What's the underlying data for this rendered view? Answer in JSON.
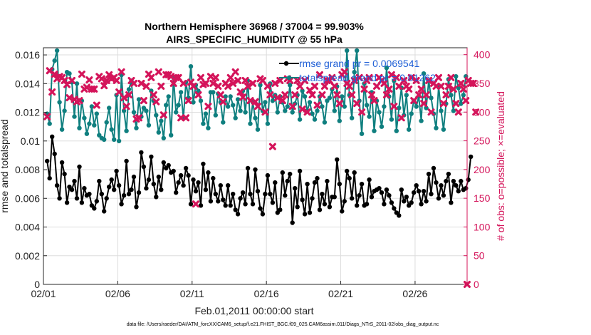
{
  "chart_data": {
    "type": "line",
    "title_line1": "Northern Hemisphere 36968 / 37004 = 99.903%",
    "title_line2": "AIRS_SPECIFIC_HUMIDITY @ 55 hPa",
    "xlabel": "Feb.01,2011 00:00:00 start",
    "ylabel_left": "rmse and totalspread",
    "ylabel_right": "# of obs: o=possible; ×=evaluated",
    "x_tick_labels": [
      "02/01",
      "02/06",
      "02/11",
      "02/16",
      "02/21",
      "02/26"
    ],
    "y_left_ticks": [
      "0",
      "0.002",
      "0.004",
      "0.006",
      "0.008",
      "0.01",
      "0.012",
      "0.014",
      "0.016"
    ],
    "y_right_ticks": [
      "0",
      "50",
      "100",
      "150",
      "200",
      "250",
      "300",
      "350",
      "400"
    ],
    "x_range_days": [
      0,
      28.5
    ],
    "y_left_range": [
      0,
      0.0165
    ],
    "y_right_range": [
      0,
      412
    ],
    "grid": true,
    "legend_position": "top-right",
    "footer": "data file: /Users/raeder/DAI/ATM_forcXX/CAM6_setup/f.e21.FHIST_BGC.f09_025.CAM6assim.011/Diags_NTrS_2011-02/obs_diag_output.nc",
    "colors": {
      "rmse": "#000000",
      "spread": "#0f7f7f",
      "obs": "#d4145a",
      "legend_text": "#1f5fd6"
    },
    "series": [
      {
        "name": "rmse grand pr = 0.0069541",
        "values": [
          0.0086,
          0.0074,
          0.0103,
          0.0091,
          0.0069,
          0.006,
          0.0085,
          0.0077,
          0.0057,
          0.0068,
          0.0066,
          0.0072,
          0.006,
          0.0082,
          0.0057,
          0.0067,
          0.0062,
          0.0063,
          0.0055,
          0.0053,
          0.0058,
          0.0072,
          0.0063,
          0.0051,
          0.006,
          0.0068,
          0.0073,
          0.0066,
          0.0079,
          0.0069,
          0.0056,
          0.0062,
          0.0086,
          0.0063,
          0.0066,
          0.0075,
          0.0054,
          0.0064,
          0.0092,
          0.0082,
          0.0067,
          0.0073,
          0.0089,
          0.007,
          0.0061,
          0.0075,
          0.0066,
          0.0085,
          0.0081,
          0.0083,
          0.0078,
          0.0079,
          0.0064,
          0.0071,
          0.0076,
          0.0069,
          0.0081,
          0.0076,
          0.0056,
          0.0073,
          0.0065,
          0.0071,
          0.0055,
          0.0084,
          0.0066,
          0.0078,
          0.0058,
          0.0074,
          0.0063,
          0.0058,
          0.0069,
          0.0059,
          0.0055,
          0.0069,
          0.0055,
          0.0063,
          0.0052,
          0.0049,
          0.006,
          0.0064,
          0.0056,
          0.0081,
          0.0063,
          0.0056,
          0.008,
          0.0065,
          0.0053,
          0.0049,
          0.0063,
          0.0076,
          0.0063,
          0.0057,
          0.0071,
          0.005,
          0.0052,
          0.0078,
          0.0062,
          0.0072,
          0.0077,
          0.0043,
          0.0067,
          0.0054,
          0.0079,
          0.0059,
          0.0049,
          0.007,
          0.005,
          0.006,
          0.0071,
          0.0074,
          0.0052,
          0.0063,
          0.0056,
          0.0072,
          0.0054,
          0.0061,
          0.0061,
          0.0087,
          0.007,
          0.0051,
          0.0058,
          0.0079,
          0.0074,
          0.006,
          0.0078,
          0.0055,
          0.0062,
          0.007,
          0.0055,
          0.0056,
          0.0073,
          0.0061,
          0.0065,
          0.0066,
          0.0067,
          0.0064,
          0.0056,
          0.0066,
          0.0062,
          0.0057,
          0.0053,
          0.005,
          0.0048,
          0.0066,
          0.0058,
          0.0061,
          0.0055,
          0.0057,
          0.0064,
          0.0069,
          0.0065,
          0.0056,
          0.0065,
          0.0058,
          0.0077,
          0.0063,
          0.0081,
          0.0071,
          0.006,
          0.0069,
          0.0062,
          0.0072,
          0.0077,
          0.0057,
          0.0072,
          0.0069,
          0.0065,
          0.0072,
          0.0066,
          0.0067,
          0.0073,
          0.0089
        ]
      },
      {
        "name": "totalspread grand pr = 0.01262",
        "values": [
          0.0119,
          0.0112,
          0.015,
          0.0156,
          0.0163,
          0.0127,
          0.0108,
          0.0121,
          0.0148,
          0.0147,
          0.0141,
          0.0117,
          0.014,
          0.0109,
          0.0128,
          0.0116,
          0.0105,
          0.0112,
          0.0124,
          0.0111,
          0.0119,
          0.0104,
          0.0102,
          0.0101,
          0.0113,
          0.0123,
          0.0108,
          0.0101,
          0.0132,
          0.01,
          0.0146,
          0.0121,
          0.0107,
          0.0136,
          0.0142,
          0.012,
          0.0109,
          0.0129,
          0.0117,
          0.0123,
          0.0121,
          0.0111,
          0.0135,
          0.0128,
          0.0118,
          0.0106,
          0.0114,
          0.0102,
          0.0125,
          0.0131,
          0.0104,
          0.0144,
          0.012,
          0.0125,
          0.0134,
          0.0116,
          0.0141,
          0.013,
          0.0152,
          0.0127,
          0.0139,
          0.0135,
          0.0128,
          0.0112,
          0.0119,
          0.0109,
          0.0134,
          0.0134,
          0.0118,
          0.0133,
          0.0127,
          0.0113,
          0.0131,
          0.0124,
          0.0131,
          0.0125,
          0.0116,
          0.0129,
          0.0121,
          0.0135,
          0.012,
          0.0142,
          0.0112,
          0.0127,
          0.0116,
          0.0108,
          0.0139,
          0.0121,
          0.0127,
          0.0112,
          0.014,
          0.0128,
          0.0132,
          0.012,
          0.0131,
          0.0127,
          0.0121,
          0.0124,
          0.0139,
          0.012,
          0.0126,
          0.0132,
          0.0115,
          0.0135,
          0.0131,
          0.0121,
          0.0127,
          0.0119,
          0.0115,
          0.0121,
          0.0131,
          0.0124,
          0.0113,
          0.0128,
          0.013,
          0.0136,
          0.0121,
          0.0138,
          0.0114,
          0.0131,
          0.0124,
          0.0163,
          0.0132,
          0.0116,
          0.0148,
          0.0163,
          0.0128,
          0.0105,
          0.014,
          0.0125,
          0.0117,
          0.0134,
          0.0107,
          0.0128,
          0.012,
          0.011,
          0.0124,
          0.0151,
          0.0131,
          0.0115,
          0.0142,
          0.0107,
          0.0123,
          0.0137,
          0.0118,
          0.0132,
          0.0108,
          0.0119,
          0.0128,
          0.0124,
          0.0131,
          0.0114,
          0.0147,
          0.0123,
          0.0142,
          0.013,
          0.0119,
          0.0109,
          0.0138,
          0.0121,
          0.0108,
          0.0126,
          0.0143,
          0.0132,
          0.0121,
          0.0145,
          0.0137,
          0.0126,
          0.0132,
          0.0145
        ]
      },
      {
        "name": "evaluated",
        "values": [
          292,
          372,
          335,
          366,
          358,
          362,
          360,
          355,
          348,
          325,
          355,
          322,
          318,
          320,
          366,
          340,
          343,
          356,
          340,
          340,
          312,
          362,
          358,
          346,
          355,
          365,
          358,
          360,
          355,
          335,
          370,
          325,
          310,
          330,
          355,
          350,
          288,
          290,
          350,
          320,
          345,
          366,
          360,
          330,
          318,
          370,
          345,
          295,
          365,
          365,
          362,
          350,
          360,
          360,
          290,
          350,
          290,
          320,
          352,
          345,
          140,
          330,
          360,
          348,
          350,
          310,
          362,
          350,
          360,
          345,
          330,
          318,
          350,
          345,
          360,
          350,
          370,
          355,
          335,
          326,
          355,
          345,
          320,
          350,
          318,
          310,
          358,
          355,
          300,
          345,
          330,
          240,
          350,
          325,
          355,
          320,
          330,
          358,
          355,
          310,
          330,
          355,
          345,
          305,
          355,
          300,
          338,
          330,
          345,
          312,
          365,
          330,
          345,
          355,
          355,
          360,
          345,
          330,
          315,
          365,
          370,
          350,
          345,
          330,
          355,
          315,
          360,
          300,
          340,
          355,
          360,
          330,
          320,
          345,
          360,
          355,
          350,
          330,
          340,
          365,
          310,
          360,
          345,
          290,
          355,
          345,
          340,
          360,
          320,
          355,
          330,
          340,
          315,
          330,
          355,
          300,
          350,
          345,
          360,
          345,
          315,
          330,
          345,
          360,
          340,
          315,
          300,
          350,
          340,
          320,
          355,
          350,
          350,
          300
        ]
      }
    ],
    "last_possible": 0
  }
}
